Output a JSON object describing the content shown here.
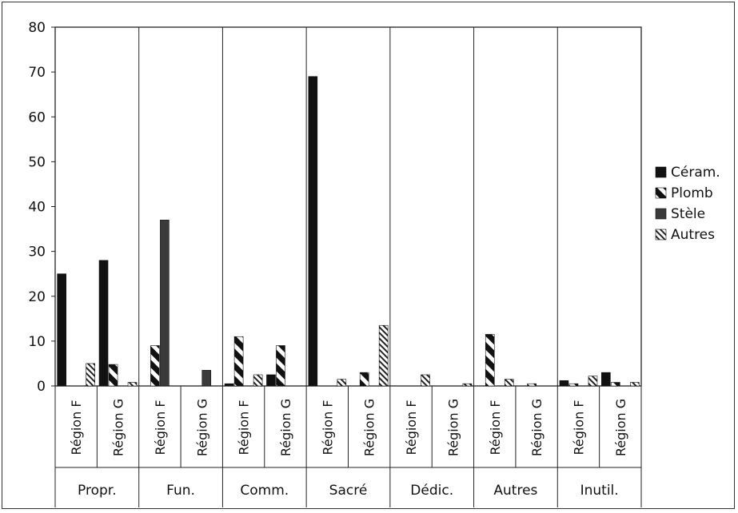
{
  "chart_data": {
    "type": "bar",
    "title": "",
    "xlabel": "",
    "ylabel": "",
    "ylim": [
      0,
      80
    ],
    "yticks": [
      0,
      10,
      20,
      30,
      40,
      50,
      60,
      70,
      80
    ],
    "grid": false,
    "legend_position": "right",
    "groups": [
      "Propr.",
      "Fun.",
      "Comm.",
      "Sacré",
      "Dédic.",
      "Autres",
      "Inutil."
    ],
    "subcategories": [
      "Région F",
      "Région G"
    ],
    "series": [
      {
        "name": "Céram.",
        "pattern": "solid",
        "values": [
          [
            25,
            28
          ],
          [
            0,
            0
          ],
          [
            0.5,
            2.5
          ],
          [
            69,
            0
          ],
          [
            0,
            0
          ],
          [
            0,
            0
          ],
          [
            1.2,
            3
          ]
        ]
      },
      {
        "name": "Plomb",
        "pattern": "wide-hatch",
        "values": [
          [
            0,
            4.8
          ],
          [
            9,
            0
          ],
          [
            11,
            9
          ],
          [
            0,
            3
          ],
          [
            0,
            0
          ],
          [
            11.5,
            0.5
          ],
          [
            0.5,
            0.8
          ]
        ]
      },
      {
        "name": "Stèle",
        "pattern": "dark",
        "values": [
          [
            0,
            0
          ],
          [
            37,
            3.5
          ],
          [
            0,
            0
          ],
          [
            0,
            0
          ],
          [
            0,
            0
          ],
          [
            0,
            0
          ],
          [
            0,
            0
          ]
        ]
      },
      {
        "name": "Autres",
        "pattern": "fine-hatch",
        "values": [
          [
            5,
            0.8
          ],
          [
            0,
            0
          ],
          [
            2.5,
            0
          ],
          [
            1.5,
            13.5
          ],
          [
            2.5,
            0.5
          ],
          [
            1.5,
            0
          ],
          [
            2.2,
            0.8
          ]
        ]
      }
    ]
  }
}
